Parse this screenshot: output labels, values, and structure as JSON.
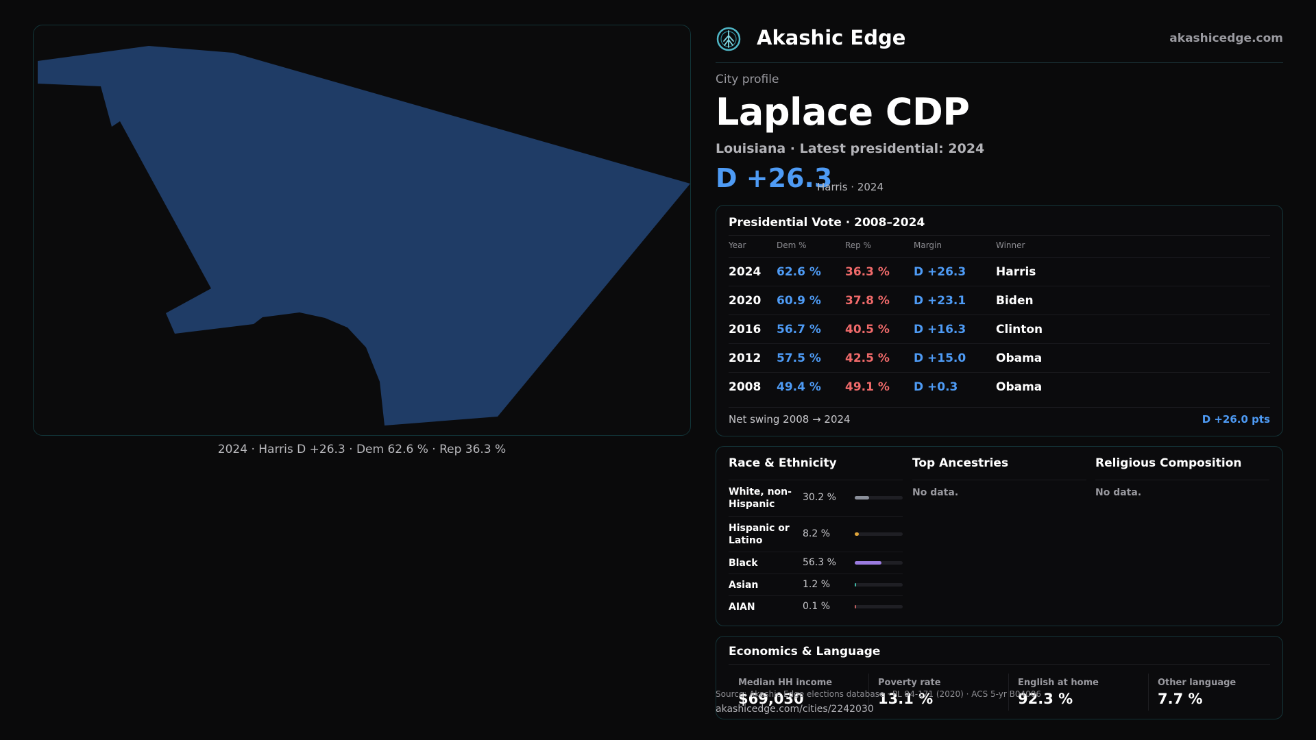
{
  "map": {
    "caption": "2024 · Harris D +26.3 · Dem 62.6 % · Rep 36.3 %",
    "fill_color": "#1f3c66"
  },
  "brand": {
    "name": "Akashic Edge",
    "url": "akashicedge.com",
    "logo_icon": "tree-compass-logo"
  },
  "profile": {
    "kicker": "City profile",
    "title": "Laplace CDP",
    "subtitle": "Louisiana · Latest presidential: 2024",
    "margin": "D +26.3",
    "margin_note": "Harris · 2024"
  },
  "votes": {
    "title": "Presidential Vote · 2008–2024",
    "columns": [
      "Year",
      "Dem %",
      "Rep %",
      "Margin",
      "Winner"
    ],
    "rows": [
      {
        "year": "2024",
        "dem": "62.6 %",
        "rep": "36.3 %",
        "margin": "D +26.3",
        "winner": "Harris"
      },
      {
        "year": "2020",
        "dem": "60.9 %",
        "rep": "37.8 %",
        "margin": "D +23.1",
        "winner": "Biden"
      },
      {
        "year": "2016",
        "dem": "56.7 %",
        "rep": "40.5 %",
        "margin": "D +16.3",
        "winner": "Clinton"
      },
      {
        "year": "2012",
        "dem": "57.5 %",
        "rep": "42.5 %",
        "margin": "D +15.0",
        "winner": "Obama"
      },
      {
        "year": "2008",
        "dem": "49.4 %",
        "rep": "49.1 %",
        "margin": "D +0.3",
        "winner": "Obama"
      }
    ],
    "swing_label": "Net swing 2008 → 2024",
    "swing_value": "D +26.0 pts",
    "dem_color": "#4e9bf5",
    "rep_color": "#f06a6a"
  },
  "race": {
    "title": "Race & Ethnicity",
    "items": [
      {
        "label": "White, non-Hispanic",
        "pct": "30.2 %",
        "value": 30.2,
        "color": "#8a8f99"
      },
      {
        "label": "Hispanic or Latino",
        "pct": "8.2 %",
        "value": 8.2,
        "color": "#e0a53a"
      },
      {
        "label": "Black",
        "pct": "56.3 %",
        "value": 56.3,
        "color": "#9b7be0"
      },
      {
        "label": "Asian",
        "pct": "1.2 %",
        "value": 1.2,
        "color": "#3fb8a6"
      },
      {
        "label": "AIAN",
        "pct": "0.1 %",
        "value": 0.1,
        "color": "#c06060"
      }
    ]
  },
  "ancestries": {
    "title": "Top Ancestries",
    "empty": "No data."
  },
  "religion": {
    "title": "Religious Composition",
    "empty": "No data."
  },
  "economics": {
    "title": "Economics & Language",
    "stats": [
      {
        "label": "Median HH income",
        "value": "$69,030"
      },
      {
        "label": "Poverty rate",
        "value": "13.1 %"
      },
      {
        "label": "English at home",
        "value": "92.3 %"
      },
      {
        "label": "Other language",
        "value": "7.7 %"
      }
    ]
  },
  "footer": {
    "source": "Source: Akashic Edge elections database · PL 94-171 (2020) · ACS 5-yr B04006",
    "url": "akashicedge.com/cities/2242030"
  }
}
